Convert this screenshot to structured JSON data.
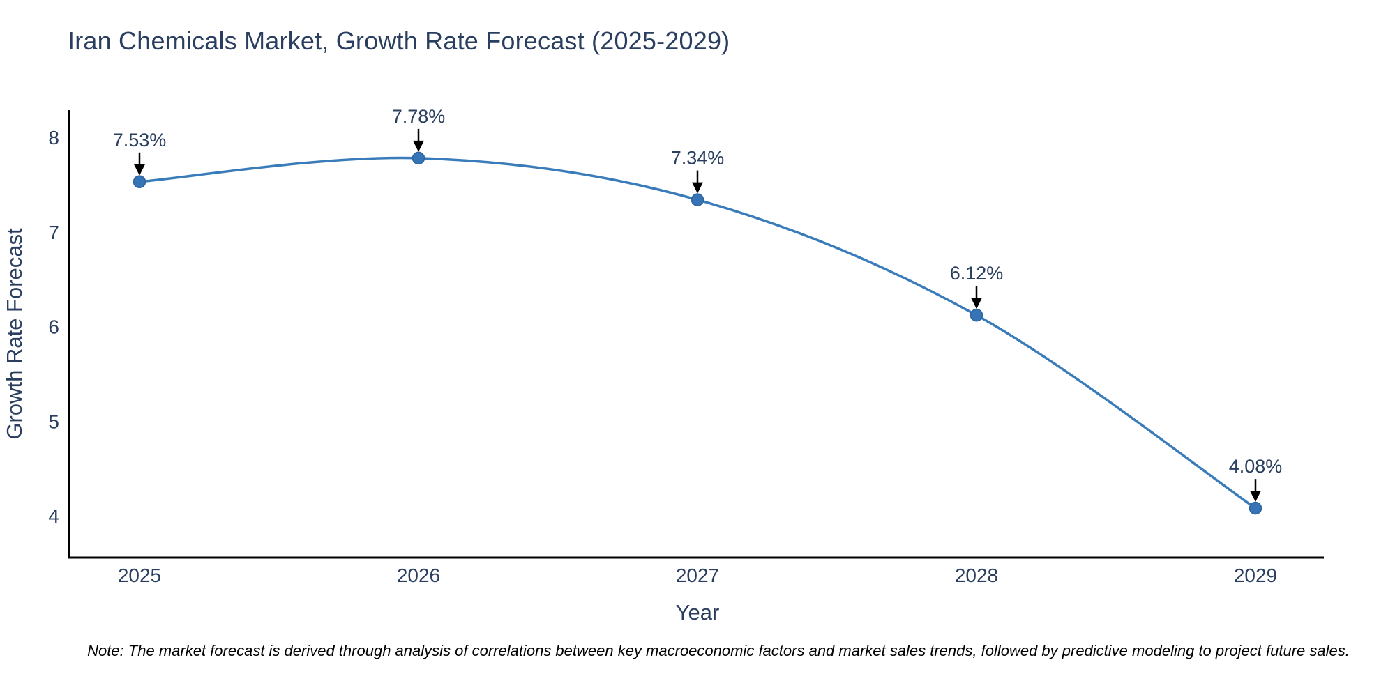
{
  "chart_data": {
    "type": "line",
    "title": "Iran Chemicals Market, Growth Rate Forecast (2025-2029)",
    "xlabel": "Year",
    "ylabel": "Growth Rate Forecast",
    "x": [
      2025,
      2026,
      2027,
      2028,
      2029
    ],
    "series": [
      {
        "name": "Growth Rate Forecast",
        "values": [
          7.53,
          7.78,
          7.34,
          6.12,
          4.08
        ]
      }
    ],
    "point_labels": [
      "7.53%",
      "7.78%",
      "7.34%",
      "6.12%",
      "4.08%"
    ],
    "x_ticks": [
      "2025",
      "2026",
      "2027",
      "2028",
      "2029"
    ],
    "y_ticks": [
      "8",
      "7",
      "6",
      "5",
      "4"
    ],
    "y_tick_values": [
      8,
      7,
      6,
      5,
      4
    ],
    "xlim": [
      2024.75,
      2029.25
    ],
    "ylim": [
      3.56,
      8.29
    ],
    "grid": false,
    "legend": "none",
    "line_shape": "spline",
    "colors": {
      "line": "#3a7cba",
      "marker_fill": "#3674b5",
      "marker_outline": "#2d649e",
      "axis_line": "#000000",
      "text": "#2a3f5f",
      "annotation_arrow": "#000000"
    }
  },
  "note": "Note: The market forecast is derived through analysis of correlations between key macroeconomic factors and market sales trends, followed by predictive modeling to project future sales."
}
